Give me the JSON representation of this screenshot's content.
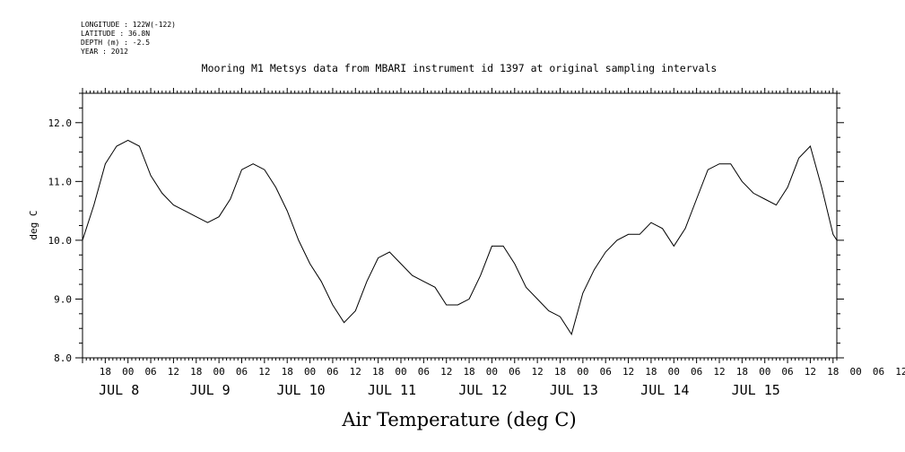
{
  "header": {
    "lines": [
      "LONGITUDE : 122W(-122)",
      "LATITUDE : 36.8N",
      "DEPTH (m) : -2.5",
      "YEAR : 2012"
    ]
  },
  "chart_data": {
    "type": "line",
    "title": "Mooring M1 Metsys data from MBARI instrument id 1397 at original sampling intervals",
    "xlabel": "Air Temperature (deg C)",
    "ylabel": "deg C",
    "ylim": [
      8.0,
      12.5
    ],
    "yticks": [
      "8.0",
      "9.0",
      "10.0",
      "11.0",
      "12.0"
    ],
    "xlim_hours_axis": "2012-07-07 12:00 to 2012-07-15 19:00",
    "hour_tick_labels": [
      "18",
      "00",
      "06",
      "12",
      "18",
      "00",
      "06",
      "12",
      "18",
      "00",
      "06",
      "12",
      "18",
      "00",
      "06",
      "12",
      "18",
      "00",
      "06",
      "12",
      "18",
      "00",
      "06",
      "12",
      "18",
      "00",
      "06",
      "12",
      "18",
      "00",
      "06",
      "12",
      "18",
      "00",
      "06",
      "12"
    ],
    "date_labels": [
      "JUL  8",
      "JUL  9",
      "JUL 10",
      "JUL 11",
      "JUL 12",
      "JUL 13",
      "JUL 14",
      "JUL 15"
    ],
    "grid": false,
    "series": [
      {
        "x": [
          "2012-07-07 12:00",
          "2012-07-07 15:00",
          "2012-07-07 18:00",
          "2012-07-07 21:00",
          "2012-07-08 00:00",
          "2012-07-08 03:00",
          "2012-07-08 06:00",
          "2012-07-08 09:00",
          "2012-07-08 12:00",
          "2012-07-08 15:00",
          "2012-07-08 18:00",
          "2012-07-08 21:00",
          "2012-07-09 00:00",
          "2012-07-09 03:00",
          "2012-07-09 06:00",
          "2012-07-09 09:00",
          "2012-07-09 12:00",
          "2012-07-09 15:00",
          "2012-07-09 18:00",
          "2012-07-09 21:00",
          "2012-07-10 00:00",
          "2012-07-10 03:00",
          "2012-07-10 06:00",
          "2012-07-10 09:00",
          "2012-07-10 12:00",
          "2012-07-10 15:00",
          "2012-07-10 18:00",
          "2012-07-10 21:00",
          "2012-07-11 00:00",
          "2012-07-11 03:00",
          "2012-07-11 06:00",
          "2012-07-11 09:00",
          "2012-07-11 12:00",
          "2012-07-11 15:00",
          "2012-07-11 18:00",
          "2012-07-11 21:00",
          "2012-07-12 00:00",
          "2012-07-12 03:00",
          "2012-07-12 06:00",
          "2012-07-12 09:00",
          "2012-07-12 12:00",
          "2012-07-12 15:00",
          "2012-07-12 18:00",
          "2012-07-12 21:00",
          "2012-07-13 00:00",
          "2012-07-13 03:00",
          "2012-07-13 06:00",
          "2012-07-13 09:00",
          "2012-07-13 12:00",
          "2012-07-13 15:00",
          "2012-07-13 18:00",
          "2012-07-13 21:00",
          "2012-07-14 00:00",
          "2012-07-14 03:00",
          "2012-07-14 06:00",
          "2012-07-14 09:00",
          "2012-07-14 12:00",
          "2012-07-14 15:00",
          "2012-07-14 18:00",
          "2012-07-14 21:00",
          "2012-07-15 00:00",
          "2012-07-15 03:00",
          "2012-07-15 06:00",
          "2012-07-15 09:00",
          "2012-07-15 12:00",
          "2012-07-15 15:00",
          "2012-07-15 18:00",
          "2012-07-15 19:00"
        ],
        "values": [
          10.0,
          10.6,
          11.3,
          11.6,
          11.7,
          11.6,
          11.1,
          10.8,
          10.6,
          10.5,
          10.4,
          10.3,
          10.4,
          10.7,
          11.2,
          11.3,
          11.2,
          10.9,
          10.5,
          10.0,
          9.6,
          9.3,
          8.9,
          8.6,
          8.8,
          9.3,
          9.7,
          9.8,
          9.6,
          9.4,
          9.3,
          9.2,
          8.9,
          8.9,
          9.0,
          9.4,
          9.9,
          9.9,
          9.6,
          9.2,
          9.0,
          8.8,
          8.7,
          8.4,
          9.1,
          9.5,
          9.8,
          10.0,
          10.1,
          10.1,
          10.3,
          10.2,
          9.9,
          10.2,
          10.7,
          11.2,
          11.3,
          11.3,
          11.0,
          10.8,
          10.7,
          10.6,
          10.9,
          11.4,
          11.6,
          10.9,
          10.1,
          10.0
        ]
      }
    ]
  }
}
